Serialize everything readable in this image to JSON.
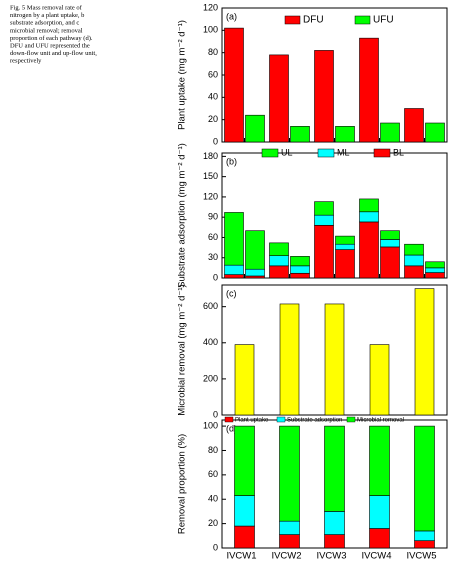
{
  "caption": [
    "Fig. 5  Mass removal rate of",
    "nitrogen by a plant uptake, b",
    "substrate adsorption, and c",
    "microbial removal; removal",
    "proportion of each pathway (d).",
    "DFU and UFU represented the",
    "down-flow unit and up-flow unit,",
    "respectively"
  ],
  "chart_data": [
    {
      "type": "bar",
      "panel_label": "(a)",
      "y_label": "Plant uptake (mg m⁻² d⁻¹)",
      "ylim": [
        0,
        120
      ],
      "yticks": [
        0,
        20,
        40,
        60,
        80,
        100,
        120
      ],
      "series": [
        {
          "name": "DFU",
          "color": "#ff0000",
          "values": [
            102,
            78,
            82,
            93,
            30
          ]
        },
        {
          "name": "UFU",
          "color": "#00ff00",
          "values": [
            24,
            14,
            14,
            17,
            17
          ]
        }
      ]
    },
    {
      "type": "stacked_pair",
      "panel_label": "(b)",
      "y_label": "Substrate adsorption (mg m⁻² d⁻¹)",
      "ylim": [
        0,
        185
      ],
      "yticks": [
        0,
        30,
        60,
        90,
        120,
        150,
        180
      ],
      "series": [
        {
          "name": "BL",
          "color": "#ff0000",
          "values": [
            [
              5,
              3
            ],
            [
              18,
              7
            ],
            [
              78,
              42
            ],
            [
              83,
              46
            ],
            [
              18,
              8
            ]
          ]
        },
        {
          "name": "ML",
          "color": "#00ffff",
          "values": [
            [
              14,
              10
            ],
            [
              15,
              11
            ],
            [
              15,
              8
            ],
            [
              15,
              11
            ],
            [
              16,
              7
            ]
          ]
        },
        {
          "name": "UL",
          "color": "#00ff00",
          "values": [
            [
              78,
              57
            ],
            [
              19,
              14
            ],
            [
              20,
              12
            ],
            [
              19,
              13
            ],
            [
              16,
              9
            ]
          ]
        }
      ]
    },
    {
      "type": "bar",
      "panel_label": "(c)",
      "y_label": "Microbial removal (mg m⁻² d⁻¹)",
      "ylim": [
        0,
        720
      ],
      "yticks": [
        0,
        200,
        400,
        600
      ],
      "series": [
        {
          "color": "#ffff00",
          "values": [
            390,
            615,
            615,
            390,
            700
          ]
        }
      ]
    },
    {
      "type": "stacked",
      "panel_label": "(d)",
      "y_label": "Removal proportion (%)",
      "ylim": [
        0,
        105
      ],
      "yticks": [
        0,
        20,
        40,
        60,
        80,
        100
      ],
      "categories": [
        "IVCW1",
        "IVCW2",
        "IVCW3",
        "IVCW4",
        "IVCW5"
      ],
      "series": [
        {
          "name": "Plant uptake",
          "color": "#ff0000",
          "values": [
            18,
            11,
            11,
            16,
            6
          ]
        },
        {
          "name": "Substrate adsorption",
          "color": "#00ffff",
          "values": [
            25,
            11,
            19,
            27,
            8
          ]
        },
        {
          "name": "Microbial removal",
          "color": "#00ff00",
          "values": [
            57,
            78,
            70,
            57,
            86
          ]
        }
      ]
    }
  ]
}
